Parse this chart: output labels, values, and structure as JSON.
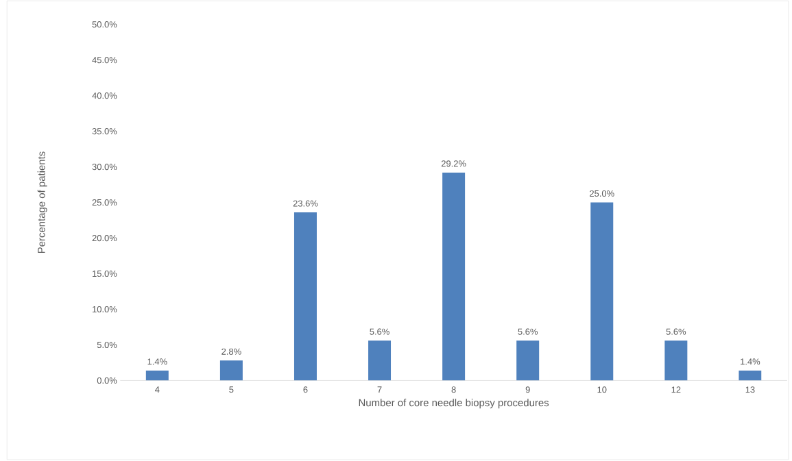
{
  "chart_data": {
    "type": "bar",
    "xlabel": "Number of core needle biopsy procedures",
    "ylabel": "Percentage of patients",
    "categories": [
      "4",
      "5",
      "6",
      "7",
      "8",
      "9",
      "10",
      "12",
      "13"
    ],
    "values": [
      1.4,
      2.8,
      23.6,
      5.6,
      29.2,
      5.6,
      25.0,
      5.6,
      1.4
    ],
    "value_labels": [
      "1.4%",
      "2.8%",
      "23.6%",
      "5.6%",
      "29.2%",
      "5.6%",
      "25.0%",
      "5.6%",
      "1.4%"
    ],
    "color": "#4f81bd",
    "ylim": [
      0,
      50
    ],
    "yticks": [
      {
        "value": 0,
        "label": "0.0%"
      },
      {
        "value": 5,
        "label": "5.0%"
      },
      {
        "value": 10,
        "label": "10.0%"
      },
      {
        "value": 15,
        "label": "15.0%"
      },
      {
        "value": 20,
        "label": "20.0%"
      },
      {
        "value": 25,
        "label": "25.0%"
      },
      {
        "value": 30,
        "label": "30.0%"
      },
      {
        "value": 35,
        "label": "35.0%"
      },
      {
        "value": 40,
        "label": "40.0%"
      },
      {
        "value": 45,
        "label": "45.0%"
      },
      {
        "value": 50,
        "label": "50.0%"
      }
    ],
    "orientation": "vertical"
  }
}
